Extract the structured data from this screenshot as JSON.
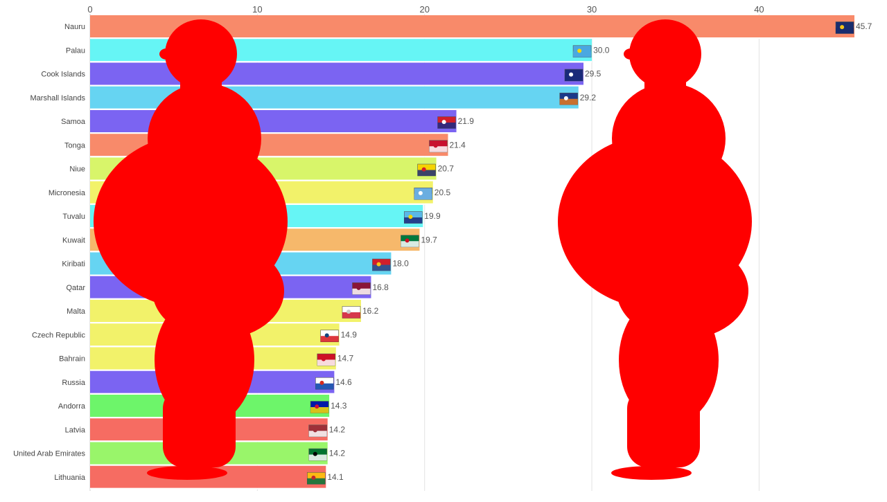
{
  "chart_data": {
    "type": "bar",
    "orientation": "horizontal",
    "title": "",
    "xlabel": "",
    "ylabel": "",
    "xlim": [
      0,
      45.7
    ],
    "x_ticks": [
      "0",
      "10",
      "20",
      "30",
      "40"
    ],
    "x_tick_values": [
      0,
      10,
      20,
      30,
      40
    ],
    "grid": true,
    "categories": [
      "Nauru",
      "Palau",
      "Cook Islands",
      "Marshall Islands",
      "Samoa",
      "Tonga",
      "Niue",
      "Micronesia",
      "Tuvalu",
      "Kuwait",
      "Kiribati",
      "Qatar",
      "Malta",
      "Czech Republic",
      "Bahrain",
      "Russia",
      "Andorra",
      "Latvia",
      "United Arab Emirates",
      "Lithuania"
    ],
    "values": [
      45.7,
      30.0,
      29.5,
      29.2,
      21.9,
      21.4,
      20.7,
      20.5,
      19.9,
      19.7,
      18.0,
      16.8,
      16.2,
      14.9,
      14.7,
      14.6,
      14.3,
      14.2,
      14.2,
      14.1
    ],
    "value_labels": [
      "45.7",
      "30.0",
      "29.5",
      "29.2",
      "21.9",
      "21.4",
      "20.7",
      "20.5",
      "19.9",
      "19.7",
      "18.0",
      "16.8",
      "16.2",
      "14.9",
      "14.7",
      "14.6",
      "14.3",
      "14.2",
      "14.2",
      "14.1"
    ],
    "bar_colors": [
      "#f88a6a",
      "#66f5f5",
      "#7b64f2",
      "#66d4f2",
      "#7b64f2",
      "#f88a6a",
      "#d8f56a",
      "#f2f26a",
      "#66f5f5",
      "#f6b86b",
      "#66d4f2",
      "#7b64f2",
      "#f2f26a",
      "#f2f26a",
      "#f2f26a",
      "#7b64f2",
      "#6df56a",
      "#f66c62",
      "#99f56a",
      "#f66c62"
    ],
    "flag_icons": [
      "nauru-flag-icon",
      "palau-flag-icon",
      "cook-islands-flag-icon",
      "marshall-islands-flag-icon",
      "samoa-flag-icon",
      "tonga-flag-icon",
      "niue-flag-icon",
      "micronesia-flag-icon",
      "tuvalu-flag-icon",
      "kuwait-flag-icon",
      "kiribati-flag-icon",
      "qatar-flag-icon",
      "malta-flag-icon",
      "czech-republic-flag-icon",
      "bahrain-flag-icon",
      "russia-flag-icon",
      "andorra-flag-icon",
      "latvia-flag-icon",
      "uae-flag-icon",
      "lithuania-flag-icon"
    ],
    "flag_colors": [
      [
        "#1a2d6e",
        "#1a2d6e",
        "#f5c518"
      ],
      [
        "#4aa8e0",
        "#4aa8e0",
        "#f5d90a"
      ],
      [
        "#1a2a7a",
        "#1a2a7a",
        "#ffffff"
      ],
      [
        "#1a3a8a",
        "#e87a20",
        "#ffffff"
      ],
      [
        "#d21e2b",
        "#1a2a8a",
        "#ffffff"
      ],
      [
        "#c8102e",
        "#ffffff",
        "#c8102e"
      ],
      [
        "#f5d400",
        "#1a2a7a",
        "#d21e2b"
      ],
      [
        "#6aaee0",
        "#6aaee0",
        "#ffffff"
      ],
      [
        "#5ab8e8",
        "#1a2a7a",
        "#f5d400"
      ],
      [
        "#007a3d",
        "#ffffff",
        "#ce1126"
      ],
      [
        "#d21e2b",
        "#1a5aa0",
        "#f5c518"
      ],
      [
        "#8a1538",
        "#ffffff",
        "#8a1538"
      ],
      [
        "#ffffff",
        "#cf142b",
        "#cccccc"
      ],
      [
        "#ffffff",
        "#d7141a",
        "#11457e"
      ],
      [
        "#ce1126",
        "#ffffff",
        "#ce1126"
      ],
      [
        "#ffffff",
        "#0039a6",
        "#d52b1e"
      ],
      [
        "#0018a8",
        "#fedf00",
        "#d0103a"
      ],
      [
        "#9e3039",
        "#ffffff",
        "#9e3039"
      ],
      [
        "#00732f",
        "#ffffff",
        "#000000"
      ],
      [
        "#fdb913",
        "#006a44",
        "#c1272d"
      ]
    ]
  },
  "decorations": {
    "silhouette_color": "#ff0000",
    "silhouette_icons": [
      "obese-person-silhouette-left-icon",
      "obese-person-silhouette-right-icon"
    ]
  }
}
